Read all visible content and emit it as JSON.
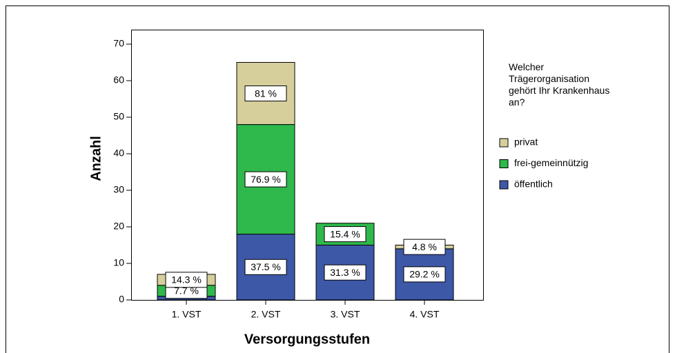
{
  "chart_data": {
    "type": "stacked_bar",
    "x_label": "Versorgungsstufen",
    "y_label": "Anzahl",
    "legend_title": "Welcher Trägerorganisation gehört Ihr Krankenhaus an?",
    "categories": [
      "1. VST",
      "2. VST",
      "3. VST",
      "4. VST"
    ],
    "series": [
      {
        "name": "öffentlich",
        "color": "#3e58a8",
        "values": [
          1,
          18,
          15,
          14
        ],
        "value_labels": [
          null,
          "37.5 %",
          "31.3 %",
          "29.2 %"
        ]
      },
      {
        "name": "frei-gemeinnützig",
        "color": "#2fb84b",
        "values": [
          3,
          30,
          6,
          0
        ],
        "value_labels": [
          "7.7 %",
          "76.9 %",
          "15.4 %",
          null
        ]
      },
      {
        "name": "privat",
        "color": "#d6cf9c",
        "values": [
          3,
          17,
          0,
          1
        ],
        "value_labels": [
          "14.3 %",
          "81 %",
          null,
          "4.8 %"
        ]
      }
    ],
    "ylim": [
      0,
      70
    ],
    "yticks": [
      0,
      10,
      20,
      30,
      40,
      50,
      60,
      70
    ],
    "legend": "right"
  }
}
